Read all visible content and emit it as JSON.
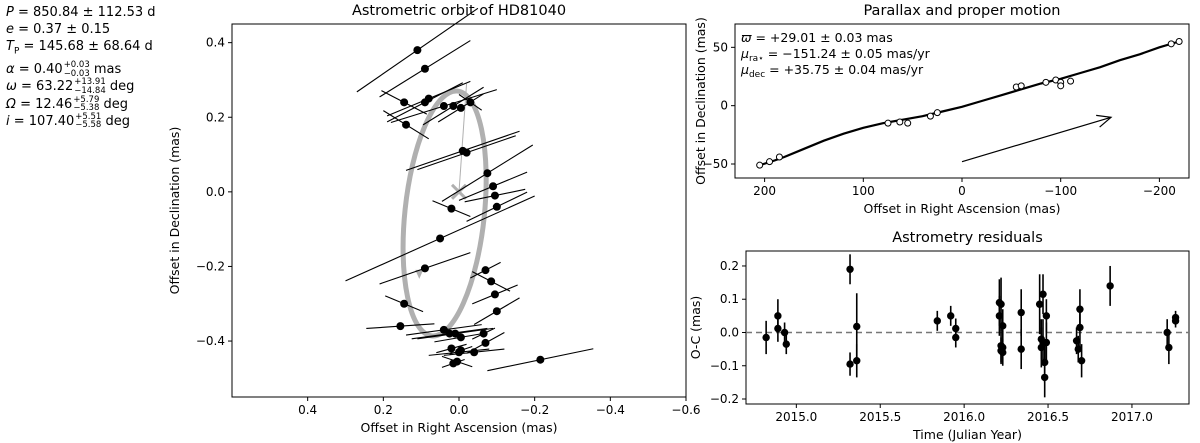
{
  "parameters": [
    {
      "sym": "P",
      "text": " = 850.84 ± 112.53 d"
    },
    {
      "sym": "e",
      "text": " = 0.37 ± 0.15"
    },
    {
      "sym": "T",
      "sub": "P",
      "text": " = 145.68 ± 68.64 d"
    },
    {
      "sym": "α",
      "text": " = 0.40",
      "sup": "+0.03",
      "subv": "−0.03",
      "unit": " mas"
    },
    {
      "sym": "ω",
      "text": " = 63.22",
      "sup": "+13.91",
      "subv": "−14.84",
      "unit": " deg"
    },
    {
      "sym": "Ω",
      "text": " = 12.46",
      "sup": "+5.79",
      "subv": "−5.38",
      "unit": " deg"
    },
    {
      "sym": "i",
      "text": " = 107.40",
      "sup": "+5.51",
      "subv": "−5.58",
      "unit": " deg"
    }
  ],
  "parallax_labels": [
    {
      "sym": "ϖ",
      "text": " = +29.01 ± 0.03 mas"
    },
    {
      "sym": "μ",
      "sub": "ra⋆",
      "text": " = −151.24 ± 0.05 mas/yr"
    },
    {
      "sym": "μ",
      "sub": "dec",
      "text": " = +35.75 ± 0.04 mas/yr"
    }
  ],
  "chart_data": [
    {
      "type": "scatter",
      "title": "Astrometric orbit of HD81040",
      "xlabel": "Offset in Right Ascension (mas)",
      "ylabel": "Offset in Declination (mas)",
      "xlim": [
        0.6,
        -0.6
      ],
      "ylim": [
        -0.55,
        0.45
      ],
      "xticks": [
        0.4,
        0.2,
        0.0,
        -0.2,
        -0.4,
        -0.6
      ],
      "xtick_labels": [
        "0.4",
        "0.2",
        "0.0",
        "−0.2",
        "−0.4",
        "−0.6"
      ],
      "yticks": [
        0.4,
        0.2,
        0.0,
        -0.2,
        -0.4
      ],
      "ytick_labels": [
        "0.4",
        "0.2",
        "0.0",
        "−0.2",
        "−0.4"
      ],
      "orbit": {
        "center": [
          0.038,
          -0.058
        ],
        "semi_x": 0.105,
        "semi_y": 0.33,
        "tilt_deg": 6,
        "color": "#b0b0b0"
      },
      "star_marker": [
        0.0,
        0.0
      ],
      "series": [
        {
          "points": [
            [
              0.11,
              0.38,
              0.16,
              -0.2
            ],
            [
              0.09,
              0.33,
              0.12,
              -0.18
            ],
            [
              0.08,
              0.25,
              0.11,
              -0.12
            ],
            [
              0.09,
              0.24,
              0.1,
              -0.15
            ],
            [
              0.04,
              0.23,
              0.14,
              -0.09
            ],
            [
              0.015,
              0.23,
              0.08,
              -0.18
            ],
            [
              -0.005,
              0.225,
              0.06,
              -0.18
            ],
            [
              -0.03,
              0.24,
              0.03,
              0.2
            ],
            [
              0.145,
              0.24,
              0.06,
              0.15
            ],
            [
              0.14,
              0.18,
              0.06,
              0.18
            ],
            [
              -0.01,
              0.11,
              0.15,
              -0.1
            ],
            [
              -0.02,
              0.105,
              0.13,
              -0.1
            ],
            [
              -0.075,
              0.05,
              0.12,
              -0.18
            ],
            [
              -0.09,
              0.015,
              0.09,
              -0.12
            ],
            [
              -0.095,
              -0.01,
              0.08,
              -0.06
            ],
            [
              -0.1,
              -0.04,
              0.08,
              -0.14
            ],
            [
              0.02,
              -0.045,
              0.05,
              0.12
            ],
            [
              0.05,
              -0.125,
              0.25,
              -0.13
            ],
            [
              0.09,
              -0.205,
              0.12,
              -0.1
            ],
            [
              -0.07,
              -0.21,
              0.04,
              -0.15
            ],
            [
              -0.085,
              -0.24,
              0.05,
              0.15
            ],
            [
              -0.095,
              -0.275,
              0.06,
              -0.12
            ],
            [
              -0.1,
              -0.32,
              0.06,
              -0.17
            ],
            [
              0.145,
              -0.3,
              0.05,
              0.12
            ],
            [
              0.155,
              -0.36,
              0.09,
              -0.02
            ],
            [
              0.04,
              -0.37,
              0.1,
              -0.04
            ],
            [
              0.025,
              -0.38,
              0.1,
              -0.04
            ],
            [
              0.01,
              -0.38,
              0.1,
              -0.04
            ],
            [
              -0.005,
              -0.39,
              0.07,
              -0.05
            ],
            [
              -0.065,
              -0.38,
              0.03,
              -0.14
            ],
            [
              -0.07,
              -0.405,
              0.05,
              -0.16
            ],
            [
              0.02,
              -0.42,
              0.04,
              -0.08
            ],
            [
              -0.005,
              -0.425,
              0.03,
              -0.1
            ],
            [
              0.0,
              -0.43,
              0.08,
              -0.03
            ],
            [
              -0.04,
              -0.43,
              0.08,
              -0.03
            ],
            [
              0.015,
              -0.46,
              0.03,
              -0.1
            ],
            [
              0.005,
              -0.455,
              0.04,
              0.1
            ],
            [
              -0.215,
              -0.45,
              0.14,
              -0.06
            ]
          ]
        }
      ]
    },
    {
      "type": "line",
      "title": "Parallax and proper motion",
      "xlabel": "Offset in Right Ascension (mas)",
      "ylabel": "Offset in Declination (mas)",
      "xlim": [
        230,
        -230
      ],
      "ylim": [
        -62,
        70
      ],
      "xticks": [
        200,
        100,
        0,
        -100,
        -200
      ],
      "xtick_labels": [
        "200",
        "100",
        "0",
        "−100",
        "−200"
      ],
      "yticks": [
        50,
        0,
        -50
      ],
      "ytick_labels": [
        "50",
        "0",
        "−50"
      ],
      "track_x": [
        205,
        190,
        180,
        160,
        140,
        120,
        100,
        80,
        60,
        40,
        20,
        0,
        -20,
        -40,
        -60,
        -80,
        -100,
        -120,
        -140,
        -160,
        -180,
        -200,
        -220
      ],
      "track_y": [
        -51,
        -47,
        -44,
        -37,
        -30,
        -24,
        -19,
        -15,
        -12,
        -9,
        -5,
        -1,
        4,
        9,
        14,
        19,
        23,
        28,
        33,
        39,
        44,
        50,
        55
      ],
      "epoch_points": [
        [
          205,
          -51
        ],
        [
          195,
          -48
        ],
        [
          185,
          -44
        ],
        [
          75,
          -15
        ],
        [
          63,
          -14
        ],
        [
          55,
          -15
        ],
        [
          32,
          -9
        ],
        [
          25,
          -6
        ],
        [
          -55,
          16
        ],
        [
          -60,
          17
        ],
        [
          -85,
          20
        ],
        [
          -95,
          22
        ],
        [
          -100,
          20
        ],
        [
          -100,
          17
        ],
        [
          -110,
          21
        ],
        [
          -212,
          53
        ],
        [
          -220,
          55
        ]
      ],
      "proper_motion_arrow": [
        [
          0,
          -48
        ],
        [
          -151,
          -10
        ]
      ]
    },
    {
      "type": "scatter",
      "title": "Astrometry residuals",
      "xlabel": "Time (Julian Year)",
      "ylabel": "O-C (mas)",
      "xlim": [
        2014.7,
        2017.34
      ],
      "ylim": [
        -0.215,
        0.245
      ],
      "xticks": [
        2015.0,
        2015.5,
        2016.0,
        2016.5,
        2017.0
      ],
      "xtick_labels": [
        "2015.0",
        "2015.5",
        "2016.0",
        "2016.5",
        "2017.0"
      ],
      "yticks": [
        0.2,
        0.1,
        0.0,
        -0.1,
        -0.2
      ],
      "ytick_labels": [
        "0.2",
        "0.1",
        "0.0",
        "−0.1",
        "−0.2"
      ],
      "zero_line": 0.0,
      "points": [
        [
          2014.82,
          -0.015,
          0.05
        ],
        [
          2014.89,
          0.05,
          0.05
        ],
        [
          2014.89,
          0.012,
          0.04
        ],
        [
          2014.93,
          0.0,
          0.03
        ],
        [
          2014.94,
          -0.035,
          0.03
        ],
        [
          2015.32,
          0.19,
          0.045
        ],
        [
          2015.32,
          -0.095,
          0.035
        ],
        [
          2015.36,
          0.018,
          0.1
        ],
        [
          2015.36,
          -0.085,
          0.05
        ],
        [
          2015.84,
          0.035,
          0.03
        ],
        [
          2015.92,
          0.05,
          0.03
        ],
        [
          2015.95,
          0.012,
          0.03
        ],
        [
          2015.95,
          -0.015,
          0.03
        ],
        [
          2016.21,
          0.09,
          0.07
        ],
        [
          2016.21,
          0.05,
          0.06
        ],
        [
          2016.22,
          0.085,
          0.08
        ],
        [
          2016.22,
          -0.04,
          0.05
        ],
        [
          2016.22,
          -0.055,
          0.04
        ],
        [
          2016.23,
          -0.045,
          0.05
        ],
        [
          2016.23,
          -0.06,
          0.04
        ],
        [
          2016.23,
          0.02,
          0.05
        ],
        [
          2016.34,
          0.06,
          0.07
        ],
        [
          2016.34,
          -0.05,
          0.06
        ],
        [
          2016.45,
          0.085,
          0.09
        ],
        [
          2016.46,
          -0.02,
          0.06
        ],
        [
          2016.46,
          -0.045,
          0.06
        ],
        [
          2016.47,
          -0.03,
          0.07
        ],
        [
          2016.47,
          0.115,
          0.06
        ],
        [
          2016.48,
          -0.135,
          0.06
        ],
        [
          2016.48,
          -0.09,
          0.06
        ],
        [
          2016.49,
          0.05,
          0.05
        ],
        [
          2016.49,
          -0.03,
          0.06
        ],
        [
          2016.67,
          -0.025,
          0.04
        ],
        [
          2016.68,
          -0.05,
          0.04
        ],
        [
          2016.69,
          0.07,
          0.06
        ],
        [
          2016.69,
          0.015,
          0.06
        ],
        [
          2016.7,
          -0.085,
          0.05
        ],
        [
          2016.87,
          0.14,
          0.06
        ],
        [
          2017.21,
          0.0,
          0.04
        ],
        [
          2017.22,
          -0.045,
          0.05
        ],
        [
          2017.26,
          0.045,
          0.02
        ],
        [
          2017.26,
          0.035,
          0.02
        ]
      ]
    }
  ]
}
